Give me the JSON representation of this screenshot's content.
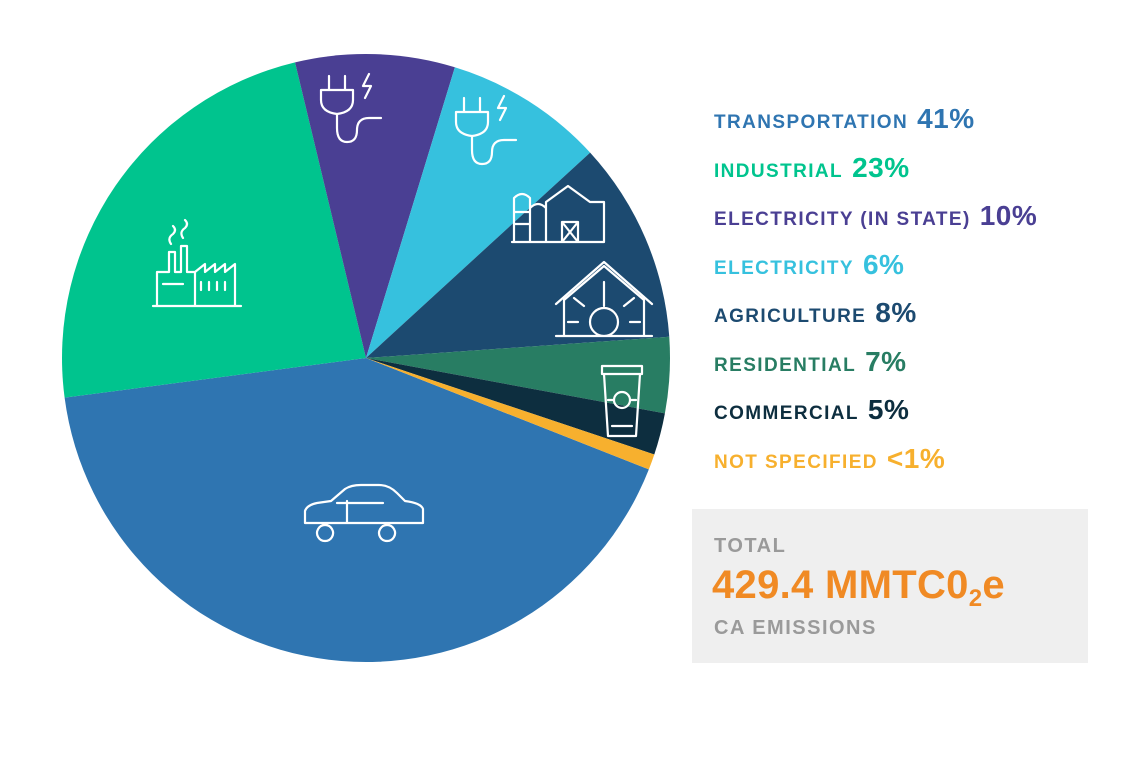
{
  "chart_data": {
    "type": "pie",
    "slices": [
      {
        "label": "TRANSPORTATION",
        "value_text": "41%",
        "value": 41,
        "color": "#2f75b1",
        "icon": "car-icon"
      },
      {
        "label": "INDUSTRIAL",
        "value_text": "23%",
        "value": 23,
        "color": "#00c48e",
        "icon": "factory-icon"
      },
      {
        "label": "ELECTRICITY (IN STATE)",
        "value_text": "10%",
        "value": 10,
        "color": "#4a3f93",
        "icon": "plug-icon"
      },
      {
        "label": "ELECTRICITY",
        "value_text": "6%",
        "value": 6,
        "color": "#36c1de",
        "icon": "plug-icon"
      },
      {
        "label": "AGRICULTURE",
        "value_text": "8%",
        "value": 8,
        "color": "#1c4a70",
        "icon": "barn-silo-icon"
      },
      {
        "label": "RESIDENTIAL",
        "value_text": "7%",
        "value": 7,
        "color": "#287d63",
        "icon": "house-furnace-icon"
      },
      {
        "label": "COMMERCIAL",
        "value_text": "5%",
        "value": 5,
        "color": "#0d2e3f",
        "icon": "trash-bin-icon"
      },
      {
        "label": "NOT SPECIFIED",
        "value_text": "<1%",
        "value": 1,
        "color": "#f7b02e",
        "icon": ""
      }
    ]
  },
  "total": {
    "label": "TOTAL",
    "value_main": "429.4 MMTC0",
    "value_sub": "2",
    "value_suffix": "e",
    "caption": "CA EMISSIONS"
  }
}
